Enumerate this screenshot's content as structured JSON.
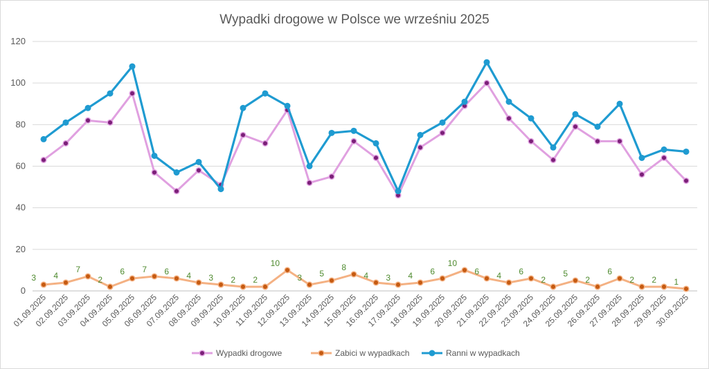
{
  "chart_data": {
    "type": "line",
    "title": "Wypadki drogowe w Polsce we wrześniu 2025",
    "xlabel": "",
    "ylabel": "",
    "ylim": [
      0,
      120
    ],
    "yticks": [
      0,
      20,
      40,
      60,
      80,
      100,
      120
    ],
    "grid": true,
    "legend_position": "bottom",
    "categories": [
      "01.09.2025",
      "02.09.2025",
      "03.09.2025",
      "04.09.2025",
      "05.09.2025",
      "06.09.2025",
      "07.09.2025",
      "08.09.2025",
      "09.09.2025",
      "10.09.2025",
      "11.09.2025",
      "12.09.2025",
      "13.09.2025",
      "14.09.2025",
      "15.09.2025",
      "16.09.2025",
      "17.09.2025",
      "18.09.2025",
      "19.09.2025",
      "20.09.2025",
      "21.09.2025",
      "22.09.2025",
      "23.09.2025",
      "24.09.2025",
      "25.09.2025",
      "26.09.2025",
      "27.09.2025",
      "28.09.2025",
      "29.09.2025",
      "30.09.2025"
    ],
    "series": [
      {
        "name": "Wypadki drogowe",
        "line_color": "#e0a0e0",
        "marker_color": "#7b1f78",
        "values": [
          63,
          71,
          82,
          81,
          95,
          57,
          48,
          58,
          51,
          75,
          71,
          87,
          52,
          55,
          72,
          64,
          46,
          69,
          76,
          89,
          100,
          83,
          72,
          63,
          79,
          72,
          72,
          56,
          64,
          53
        ]
      },
      {
        "name": "Zabici w wypadkach",
        "line_color": "#f4b183",
        "marker_color": "#c55a11",
        "show_data_labels": true,
        "values": [
          3,
          4,
          7,
          2,
          6,
          7,
          6,
          4,
          3,
          2,
          2,
          10,
          3,
          5,
          8,
          4,
          3,
          4,
          6,
          10,
          6,
          4,
          6,
          2,
          5,
          2,
          6,
          2,
          2,
          1
        ]
      },
      {
        "name": "Ranni w wypadkach",
        "line_color": "#1f9bd1",
        "marker_color": "#1f9bd1",
        "values": [
          73,
          81,
          88,
          95,
          108,
          65,
          57,
          62,
          49,
          88,
          95,
          89,
          60,
          76,
          77,
          71,
          48,
          75,
          81,
          91,
          110,
          91,
          83,
          69,
          85,
          79,
          90,
          64,
          68,
          67
        ]
      }
    ]
  }
}
